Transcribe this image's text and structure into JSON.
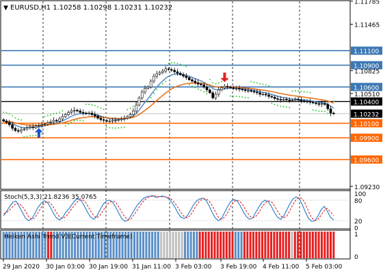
{
  "header": {
    "title": "EURUSD,H1  1.10258 1.10298 1.10231 1.10232"
  },
  "chart_data": [
    {
      "type": "candlestick",
      "title": "EURUSD,H1  1.10258 1.10298 1.10231 1.10232",
      "symbol": "EURUSD",
      "timeframe": "H1",
      "ohlc_last": {
        "open": 1.10258,
        "high": 1.10298,
        "low": 1.10231,
        "close": 1.10232
      },
      "ylim": [
        1.092,
        1.1178
      ],
      "y_ticks": [
        "1.11785",
        "1.11465",
        "1.11100",
        "1.10900",
        "1.10825",
        "1.10600",
        "1.10510",
        "1.10400",
        "1.10232",
        "1.10100",
        "1.09900",
        "1.09600",
        "1.09230"
      ],
      "x_ticks": [
        "29 Jan 2020",
        "30 Jan 03:00",
        "30 Jan 19:00",
        "31 Jan 11:00",
        "3 Feb 03:00",
        "3 Feb 19:00",
        "4 Feb 11:00",
        "5 Feb 03:00"
      ],
      "grid": "vertical dashed",
      "current_price": 1.10232,
      "levels": [
        {
          "price": 1.111,
          "label": "1.11100",
          "color": "#3c78b4"
        },
        {
          "price": 1.109,
          "label": "1.10900",
          "color": "#3c78b4"
        },
        {
          "price": 1.106,
          "label": "1.10600",
          "color": "#3c78b4"
        },
        {
          "price": 1.104,
          "label": "1.10400",
          "color": "#000000"
        },
        {
          "price": 1.101,
          "label": "1.10100",
          "color": "#ff6600"
        },
        {
          "price": 1.099,
          "label": "1.09900",
          "color": "#ff6600"
        },
        {
          "price": 1.096,
          "label": "1.09600",
          "color": "#ff6600"
        }
      ],
      "signals": [
        {
          "type": "buy",
          "bar": 12,
          "color": "#1e50c8"
        },
        {
          "type": "sell",
          "bar": 75,
          "color": "#e62020"
        }
      ],
      "close_series": [
        1.1013,
        1.1011,
        1.1008,
        1.1003,
        1.1,
        1.0999,
        1.1001,
        1.1002,
        1.1004,
        1.1005,
        1.1004,
        1.1006,
        1.1007,
        1.1008,
        1.1009,
        1.1011,
        1.1012,
        1.1014,
        1.1013,
        1.1016,
        1.1019,
        1.1022,
        1.1025,
        1.1027,
        1.1028,
        1.1027,
        1.1025,
        1.1024,
        1.1023,
        1.1024,
        1.1022,
        1.102,
        1.1017,
        1.1015,
        1.1014,
        1.1013,
        1.1013,
        1.1014,
        1.1014,
        1.1015,
        1.1016,
        1.1017,
        1.1019,
        1.1022,
        1.1027,
        1.1035,
        1.1045,
        1.1053,
        1.1058,
        1.106,
        1.1068,
        1.1075,
        1.1078,
        1.108,
        1.1082,
        1.1085,
        1.1084,
        1.1083,
        1.1081,
        1.1079,
        1.1077,
        1.1075,
        1.1073,
        1.107,
        1.1068,
        1.1066,
        1.1064,
        1.1063,
        1.106,
        1.1056,
        1.1052,
        1.1045,
        1.105,
        1.1056,
        1.1059,
        1.1061,
        1.106,
        1.1059,
        1.1058,
        1.1058,
        1.1057,
        1.1056,
        1.1055,
        1.1055,
        1.1054,
        1.1053,
        1.1052,
        1.105,
        1.105,
        1.1049,
        1.1047,
        1.1046,
        1.1044,
        1.1043,
        1.1042,
        1.1043,
        1.1042,
        1.1041,
        1.1042,
        1.1043,
        1.1042,
        1.1041,
        1.104,
        1.104,
        1.1039,
        1.1038,
        1.1037,
        1.1036,
        1.1037,
        1.1036,
        1.103,
        1.1024,
        1.1023
      ]
    },
    {
      "type": "line",
      "title": "Stoch(5,3,3) 21.8236 35.0765",
      "series": [
        {
          "name": "main",
          "color": "#1e78c8",
          "values": [
            34,
            48,
            62,
            74,
            77,
            62,
            45,
            28,
            20,
            25,
            40,
            58,
            70,
            78,
            74,
            60,
            42,
            28,
            22,
            30,
            45,
            55,
            68,
            80,
            84,
            78,
            62,
            44,
            30,
            24,
            34,
            52,
            68,
            78,
            80,
            74,
            60,
            42,
            26,
            18,
            22,
            36,
            52,
            66,
            76,
            86,
            90,
            92,
            93,
            88,
            90,
            92,
            90,
            84,
            74,
            60,
            42,
            30,
            26,
            34,
            50,
            66,
            78,
            84,
            86,
            80,
            64,
            44,
            28,
            20,
            26,
            44,
            62,
            76,
            82,
            78,
            64,
            46,
            32,
            24,
            28,
            44,
            60,
            74,
            80,
            76,
            62,
            44,
            30,
            24,
            34,
            52,
            70,
            84,
            90,
            84,
            66,
            44,
            26,
            18,
            20,
            34,
            52,
            62,
            48,
            30,
            22
          ]
        },
        {
          "name": "signal",
          "color": "#e62020",
          "values": [
            40,
            44,
            52,
            62,
            70,
            70,
            62,
            48,
            32,
            24,
            28,
            42,
            58,
            70,
            76,
            72,
            60,
            44,
            30,
            26,
            32,
            44,
            56,
            68,
            78,
            82,
            78,
            64,
            48,
            34,
            28,
            36,
            50,
            64,
            74,
            78,
            74,
            60,
            44,
            30,
            22,
            26,
            38,
            52,
            66,
            78,
            86,
            90,
            92,
            92,
            90,
            90,
            90,
            88,
            82,
            72,
            58,
            44,
            32,
            28,
            36,
            50,
            66,
            78,
            84,
            84,
            78,
            64,
            46,
            30,
            24,
            30,
            44,
            62,
            76,
            80,
            76,
            64,
            48,
            34,
            28,
            32,
            44,
            60,
            72,
            78,
            76,
            64,
            48,
            34,
            28,
            34,
            50,
            68,
            82,
            88,
            84,
            68,
            46,
            28,
            20,
            24,
            36,
            50,
            56,
            46,
            35
          ]
        }
      ],
      "ylim": [
        0,
        100
      ],
      "y_ticks": [
        "100",
        "80",
        "20",
        "0"
      ],
      "levels": [
        20,
        80
      ]
    },
    {
      "type": "bar",
      "title": "Heiken Ashi Trend V3(Current Timeframe)",
      "ylim": [
        0,
        1
      ],
      "y_ticks": [
        "1",
        "0"
      ],
      "segments": [
        {
          "state": "bull",
          "color": "#5b8fc7",
          "bars": 15
        },
        {
          "state": "bear",
          "color": "#e62020",
          "bars": 2
        },
        {
          "state": "bull",
          "color": "#5b8fc7",
          "bars": 36
        },
        {
          "state": "neutral",
          "color": "#c0c0c0",
          "bars": 8
        },
        {
          "state": "bull",
          "color": "#5b8fc7",
          "bars": 5
        },
        {
          "state": "bear",
          "color": "#e62020",
          "bars": 12
        },
        {
          "state": "bull",
          "color": "#5b8fc7",
          "bars": 3
        },
        {
          "state": "bear",
          "color": "#e62020",
          "bars": 16
        },
        {
          "state": "neutral",
          "color": "#c0c0c0",
          "bars": 1
        },
        {
          "state": "bear",
          "color": "#e62020",
          "bars": 14
        }
      ]
    }
  ]
}
